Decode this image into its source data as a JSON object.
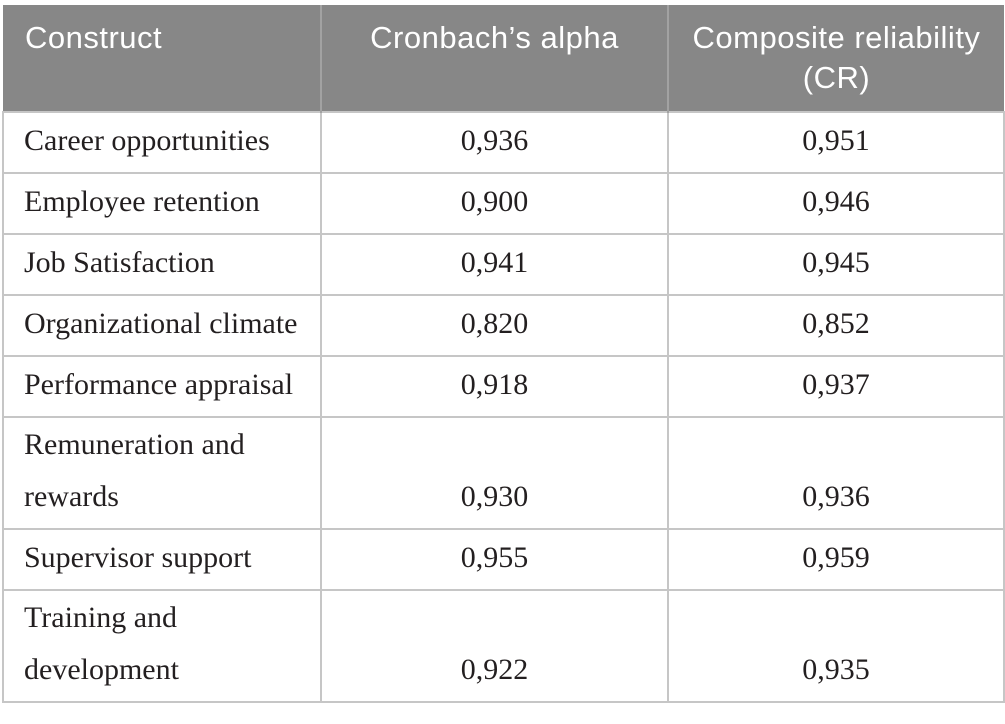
{
  "table": {
    "columns": [
      {
        "label": "Construct"
      },
      {
        "label": "Cronbach’s alpha"
      },
      {
        "label": "Composite reliability (CR)"
      }
    ],
    "rows": [
      {
        "construct": "Career opportunities",
        "alpha": "0,936",
        "cr": "0,951"
      },
      {
        "construct": "Employee retention",
        "alpha": "0,900",
        "cr": "0,946"
      },
      {
        "construct": "Job Satisfaction",
        "alpha": "0,941",
        "cr": "0,945"
      },
      {
        "construct": "Organizational climate",
        "alpha": "0,820",
        "cr": "0,852"
      },
      {
        "construct": "Performance appraisal",
        "alpha": "0,918",
        "cr": "0,937"
      },
      {
        "construct": "Remuneration and rewards",
        "alpha": "0,930",
        "cr": "0,936"
      },
      {
        "construct": "Supervisor support",
        "alpha": "0,955",
        "cr": "0,959"
      },
      {
        "construct": "Training and development",
        "alpha": "0,922",
        "cr": "0,935"
      }
    ]
  },
  "colors": {
    "header_background": "#878787",
    "header_text": "#ffffff",
    "header_divider": "#a2a2a2",
    "grid_border": "#c6c6c6",
    "body_text": "#231f20",
    "page_background": "#ffffff"
  }
}
